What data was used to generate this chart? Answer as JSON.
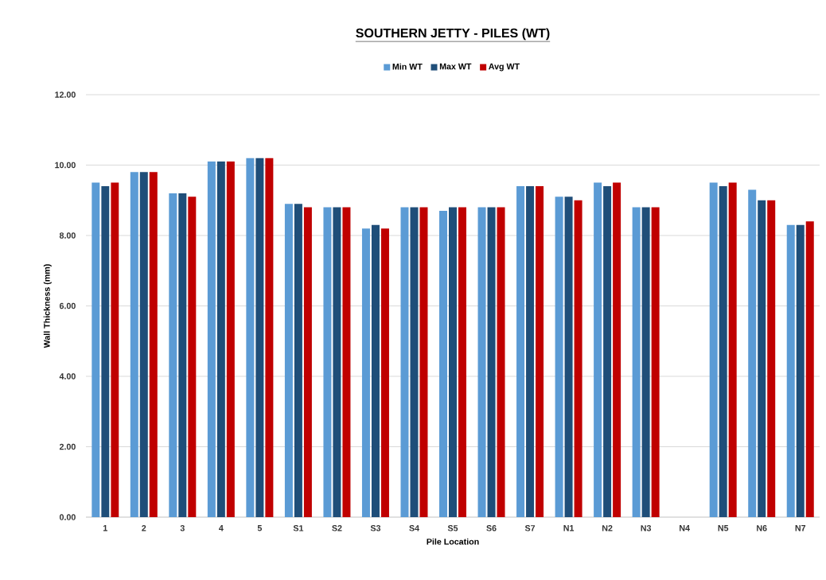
{
  "chart_data": {
    "type": "bar",
    "title": "SOUTHERN JETTY - PILES (WT)",
    "xlabel": "Pile Location",
    "ylabel": "Wall Thickness (mm)",
    "categories": [
      "1",
      "2",
      "3",
      "4",
      "5",
      "S1",
      "S2",
      "S3",
      "S4",
      "S5",
      "S6",
      "S7",
      "N1",
      "N2",
      "N3",
      "N4",
      "N5",
      "N6",
      "N7"
    ],
    "series": [
      {
        "name": "Min WT",
        "color": "#5b9bd5",
        "values": [
          9.5,
          9.8,
          9.2,
          10.1,
          10.2,
          8.9,
          8.8,
          8.2,
          8.8,
          8.7,
          8.8,
          9.4,
          9.1,
          9.5,
          8.8,
          null,
          9.5,
          9.3,
          8.3
        ]
      },
      {
        "name": "Max WT",
        "color": "#1f4e79",
        "values": [
          9.4,
          9.8,
          9.2,
          10.1,
          10.2,
          8.9,
          8.8,
          8.3,
          8.8,
          8.8,
          8.8,
          9.4,
          9.1,
          9.4,
          8.8,
          null,
          9.4,
          9.0,
          8.3
        ]
      },
      {
        "name": "Avg WT",
        "color": "#c00000",
        "values": [
          9.5,
          9.8,
          9.1,
          10.1,
          10.2,
          8.8,
          8.8,
          8.2,
          8.8,
          8.8,
          8.8,
          9.4,
          9.0,
          9.5,
          8.8,
          null,
          9.5,
          9.0,
          8.4
        ]
      }
    ],
    "ylim": [
      0,
      12
    ],
    "yticks": [
      {
        "value": 0,
        "label": "0.00"
      },
      {
        "value": 2,
        "label": "2.00"
      },
      {
        "value": 4,
        "label": "4.00"
      },
      {
        "value": 6,
        "label": "6.00"
      },
      {
        "value": 8,
        "label": "8.00"
      },
      {
        "value": 10,
        "label": "10.00"
      },
      {
        "value": 12,
        "label": "12.00"
      }
    ],
    "grid": "y",
    "legend": "top"
  }
}
